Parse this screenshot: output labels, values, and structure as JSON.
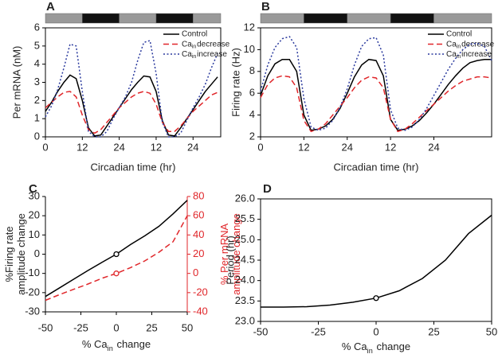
{
  "chart_data": [
    {
      "type": "line",
      "label": "A",
      "light_dark_bar": true,
      "xlabel": "Circadian time (hr)",
      "ylabel": "Per mRNA (nM)",
      "xlim": [
        0,
        57
      ],
      "xticks": [
        0,
        12,
        24,
        {
          "value": 36,
          "label": "12"
        },
        {
          "value": 48,
          "label": "24"
        }
      ],
      "ylim": [
        0,
        6
      ],
      "yticks": [
        0,
        1,
        2,
        3,
        4,
        5,
        6
      ],
      "x": [
        0,
        2,
        4,
        6,
        8,
        10,
        12,
        14,
        16,
        18,
        20,
        22,
        24,
        26,
        28,
        30,
        32,
        34,
        36,
        38,
        40,
        42,
        44,
        46,
        48,
        50,
        52,
        54,
        56
      ],
      "series": [
        {
          "name": "Control",
          "color": "#000000",
          "dash": "solid",
          "values": [
            1.4,
            1.9,
            2.5,
            3.0,
            3.4,
            3.2,
            2.0,
            0.5,
            0.05,
            0.1,
            0.6,
            1.1,
            1.6,
            2.1,
            2.6,
            3.0,
            3.35,
            3.3,
            2.5,
            0.9,
            0.1,
            0.05,
            0.5,
            1.0,
            1.5,
            2.0,
            2.5,
            2.9,
            3.3
          ]
        },
        {
          "name": [
            "Ca",
            "in",
            "decrease"
          ],
          "color": "#e0262a",
          "dash": "dashed",
          "values": [
            1.6,
            1.9,
            2.2,
            2.45,
            2.5,
            2.2,
            1.2,
            0.4,
            0.2,
            0.4,
            0.8,
            1.2,
            1.6,
            1.9,
            2.2,
            2.4,
            2.5,
            2.4,
            1.8,
            0.8,
            0.3,
            0.3,
            0.6,
            1.0,
            1.4,
            1.7,
            2.0,
            2.3,
            2.45
          ]
        },
        {
          "name": [
            "Ca",
            "in",
            "increase"
          ],
          "color": "#2b3a9e",
          "dash": "dotted",
          "values": [
            1.1,
            1.7,
            2.6,
            3.8,
            5.1,
            5.0,
            2.5,
            0.3,
            0,
            0,
            0.3,
            1.0,
            1.6,
            2.2,
            3.0,
            4.2,
            5.2,
            5.3,
            3.5,
            0.8,
            0,
            0,
            0.2,
            0.9,
            1.6,
            2.2,
            2.9,
            3.8,
            4.6
          ]
        }
      ]
    },
    {
      "type": "line",
      "label": "B",
      "light_dark_bar": true,
      "xlabel": "Circadian time (hr)",
      "ylabel": "Firing rate (Hz)",
      "xlim": [
        0,
        64
      ],
      "xticks": [
        0,
        12,
        24,
        {
          "value": 36,
          "label": "12"
        },
        {
          "value": 48,
          "label": "24"
        }
      ],
      "ylim": [
        2,
        12
      ],
      "yticks": [
        2,
        4,
        6,
        8,
        10,
        12
      ],
      "x": [
        0,
        2,
        4,
        6,
        8,
        10,
        12,
        14,
        16,
        18,
        20,
        22,
        24,
        26,
        28,
        30,
        32,
        34,
        36,
        38,
        40,
        42,
        44,
        46,
        48,
        50,
        52,
        54,
        56,
        58,
        60,
        62,
        64
      ],
      "series": [
        {
          "name": "Control",
          "color": "#000000",
          "dash": "solid",
          "values": [
            5.8,
            7.6,
            8.7,
            9.1,
            9.1,
            8.0,
            4.0,
            2.6,
            2.7,
            3.0,
            3.6,
            4.6,
            6.0,
            7.5,
            8.6,
            9.1,
            9.0,
            7.6,
            3.6,
            2.6,
            2.7,
            3.0,
            3.5,
            4.2,
            5.0,
            5.9,
            6.8,
            7.6,
            8.3,
            8.8,
            9.0,
            9.1,
            9.1
          ]
        },
        {
          "name": [
            "Ca",
            "in",
            "decrease"
          ],
          "color": "#e0262a",
          "dash": "dashed",
          "values": [
            5.6,
            6.8,
            7.4,
            7.6,
            7.5,
            6.5,
            3.5,
            2.5,
            2.7,
            3.2,
            4.0,
            4.8,
            5.6,
            6.5,
            7.2,
            7.5,
            7.4,
            6.5,
            3.6,
            2.5,
            2.7,
            3.2,
            3.8,
            4.4,
            5.0,
            5.6,
            6.2,
            6.7,
            7.1,
            7.3,
            7.5,
            7.5,
            7.4
          ]
        },
        {
          "name": [
            "Ca",
            "in",
            "increase"
          ],
          "color": "#2b3a9e",
          "dash": "dotted",
          "values": [
            6.2,
            8.6,
            10.2,
            11.0,
            11.2,
            10.2,
            5.5,
            2.9,
            2.6,
            2.8,
            3.5,
            4.7,
            6.4,
            8.6,
            10.3,
            11.0,
            11.1,
            9.5,
            4.5,
            2.8,
            2.6,
            2.9,
            3.6,
            4.6,
            5.8,
            7.0,
            8.2,
            9.2,
            10.0,
            10.5,
            10.6,
            10.3,
            9.0
          ]
        }
      ]
    },
    {
      "type": "line",
      "label": "C",
      "open_marker_x": 0,
      "xlabel": [
        "% Ca",
        "in",
        " change"
      ],
      "ylabel": [
        "%Firing rate",
        "amplitude change"
      ],
      "y2label": [
        "% Per mRNA",
        "amplitude change"
      ],
      "y2_color": "#e0262a",
      "xlim": [
        -50,
        50
      ],
      "xticks": [
        -50,
        -25,
        0,
        25,
        50
      ],
      "ylim": [
        -30,
        30
      ],
      "yticks": [
        -30,
        -20,
        -10,
        0,
        10,
        20,
        30
      ],
      "y2lim": [
        -40,
        80
      ],
      "y2ticks": [
        -40,
        -20,
        0,
        20,
        40,
        60,
        80
      ],
      "x": [
        -50,
        -40,
        -30,
        -20,
        -10,
        0,
        10,
        20,
        30,
        40,
        50
      ],
      "series": [
        {
          "color": "#000000",
          "dash": "solid",
          "values": [
            -22,
            -17.5,
            -13,
            -8.5,
            -4.2,
            0,
            5,
            9.5,
            14.5,
            21,
            28
          ]
        },
        {
          "color": "#e0262a",
          "dash": "dashed",
          "axis": "y2",
          "values": [
            -28,
            -22,
            -16.5,
            -11,
            -5,
            0,
            6,
            13,
            22,
            33,
            60
          ]
        }
      ]
    },
    {
      "type": "line",
      "label": "D",
      "open_marker_x": 0,
      "xlabel": [
        "% Ca",
        "in",
        " change"
      ],
      "ylabel": "Period (hr)",
      "xlim": [
        -50,
        50
      ],
      "xticks": [
        -50,
        -25,
        0,
        25,
        50
      ],
      "ylim": [
        23,
        26
      ],
      "yticks": [
        {
          "value": 23,
          "label": "23.0"
        },
        23.5,
        {
          "value": 24,
          "label": "24.0"
        },
        24.5,
        {
          "value": 25,
          "label": "25.0"
        },
        25.5,
        {
          "value": 26,
          "label": "26.0"
        }
      ],
      "x": [
        -50,
        -40,
        -30,
        -20,
        -10,
        0,
        10,
        20,
        30,
        40,
        50
      ],
      "series": [
        {
          "color": "#000000",
          "dash": "solid",
          "values": [
            23.35,
            23.35,
            23.36,
            23.4,
            23.47,
            23.57,
            23.75,
            24.05,
            24.5,
            25.15,
            25.6
          ]
        }
      ]
    }
  ]
}
